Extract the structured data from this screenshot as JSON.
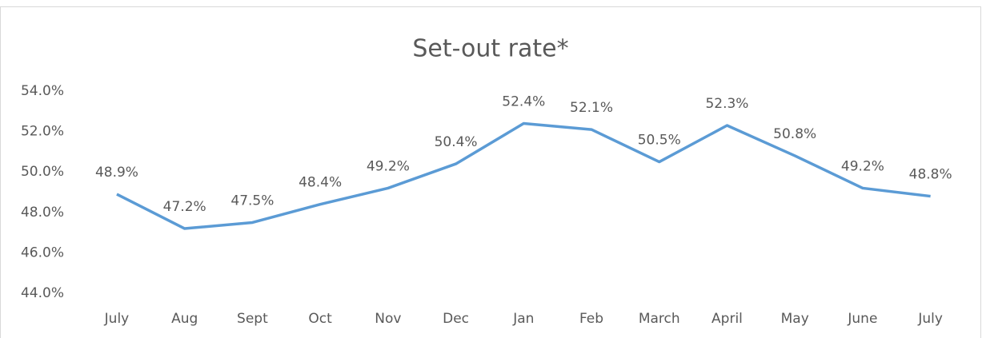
{
  "chart_data": {
    "type": "line",
    "title": "Set-out rate*",
    "categories": [
      "July",
      "Aug",
      "Sept",
      "Oct",
      "Nov",
      "Dec",
      "Jan",
      "Feb",
      "March",
      "April",
      "May",
      "June",
      "July"
    ],
    "series": [
      {
        "name": "Set-out rate",
        "color": "#5b9bd5",
        "values": [
          48.9,
          47.2,
          47.5,
          48.4,
          49.2,
          50.4,
          52.4,
          52.1,
          50.5,
          52.3,
          50.8,
          49.2,
          48.8
        ],
        "value_labels": [
          "48.9%",
          "47.2%",
          "47.5%",
          "48.4%",
          "49.2%",
          "50.4%",
          "52.4%",
          "52.1%",
          "50.5%",
          "52.3%",
          "50.8%",
          "49.2%",
          "48.8%"
        ]
      }
    ],
    "ylim": [
      44,
      54
    ],
    "yticks": [
      {
        "value": 44,
        "label": "44.0%"
      },
      {
        "value": 46,
        "label": "46.0%"
      },
      {
        "value": 48,
        "label": "48.0%"
      },
      {
        "value": 50,
        "label": "50.0%"
      },
      {
        "value": 52,
        "label": "52.0%"
      },
      {
        "value": 54,
        "label": "54.0%"
      }
    ],
    "grid": false
  }
}
